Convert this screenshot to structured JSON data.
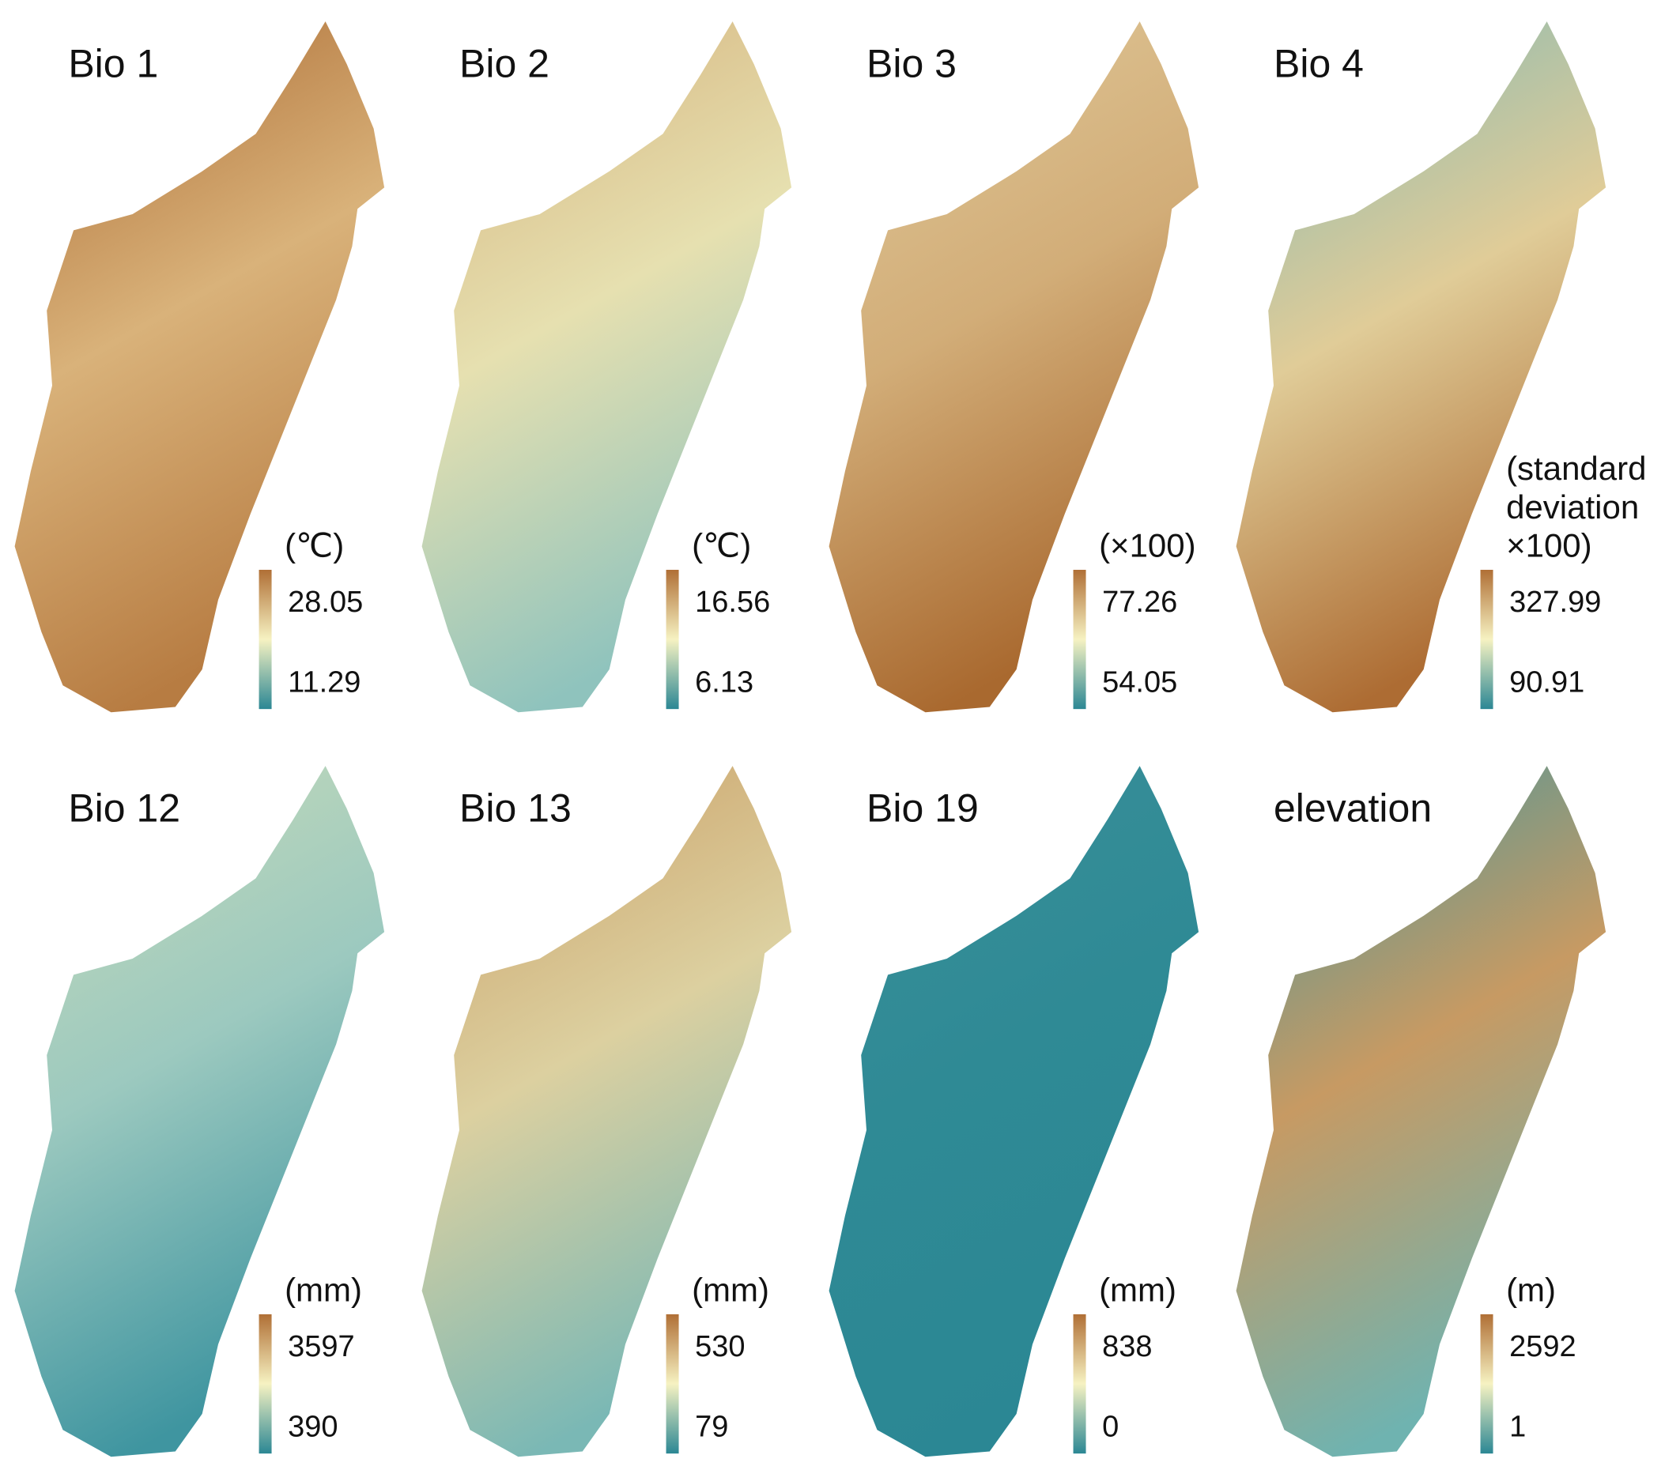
{
  "panels": [
    {
      "title": "Bio 1",
      "unit": [
        "(℃)"
      ],
      "max": "28.05",
      "min": "11.29"
    },
    {
      "title": "Bio 2",
      "unit": [
        "(℃)"
      ],
      "max": "16.56",
      "min": "6.13"
    },
    {
      "title": "Bio 3",
      "unit": [
        "(×100)"
      ],
      "max": "77.26",
      "min": "54.05"
    },
    {
      "title": "Bio 4",
      "unit": [
        "(standard",
        "deviation",
        "×100)"
      ],
      "max": "327.99",
      "min": "90.91"
    },
    {
      "title": "Bio 12",
      "unit": [
        "(mm)"
      ],
      "max": "3597",
      "min": "390"
    },
    {
      "title": "Bio 13",
      "unit": [
        "(mm)"
      ],
      "max": "530",
      "min": "79"
    },
    {
      "title": "Bio 19",
      "unit": [
        "(mm)"
      ],
      "max": "838",
      "min": "0"
    },
    {
      "title": "elevation",
      "unit": [
        "(m)"
      ],
      "max": "2592",
      "min": "1"
    }
  ]
}
